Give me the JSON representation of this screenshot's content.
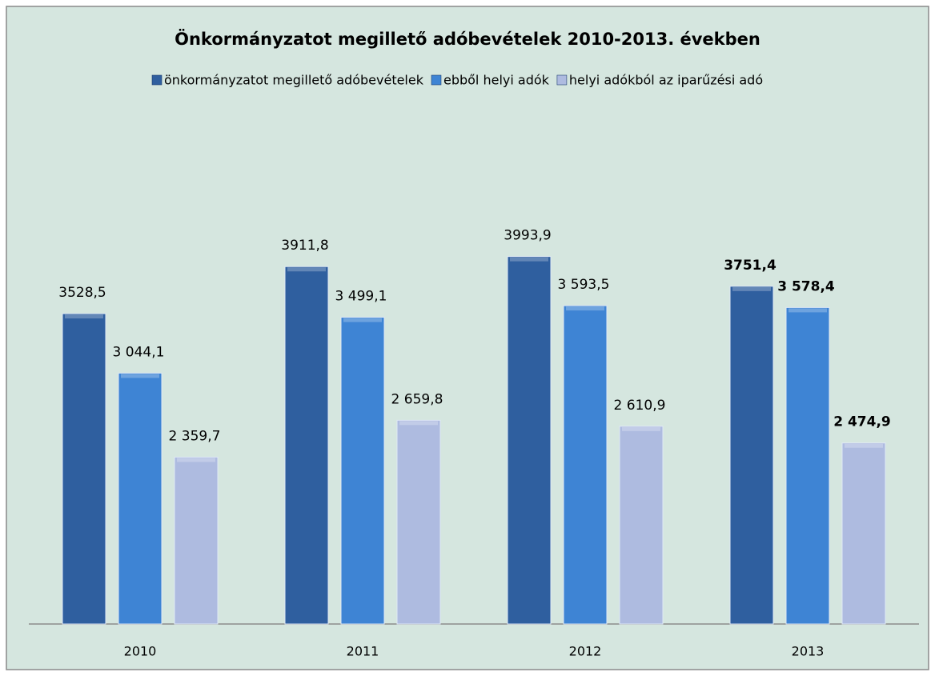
{
  "chart_data": {
    "type": "bar",
    "title": "Önkormányzatot megillető adóbevételek 2010-2013. években",
    "categories": [
      "2010",
      "2011",
      "2012",
      "2013"
    ],
    "series": [
      {
        "name": "önkormányzatot megillető adóbevételek",
        "color": "#2f5f9f",
        "values": [
          3528.5,
          3911.8,
          3993.9,
          3751.4
        ],
        "value_labels": [
          "3528,5",
          "3911,8",
          "3993,9",
          "3751,4"
        ]
      },
      {
        "name": "ebből helyi adók",
        "color": "#3e84d4",
        "values": [
          3044.1,
          3499.1,
          3593.5,
          3578.4
        ],
        "value_labels": [
          "3 044,1",
          "3 499,1",
          "3 593,5",
          "3 578,4"
        ]
      },
      {
        "name": "helyi adókból az iparűzési adó",
        "color": "#aebbe0",
        "values": [
          2359.7,
          2659.8,
          2610.9,
          2474.9
        ],
        "value_labels": [
          "2 359,7",
          "2 659,8",
          "2 610,9",
          "2 474,9"
        ]
      }
    ],
    "ylim": [
      1000,
      4500
    ],
    "legend": "top"
  }
}
